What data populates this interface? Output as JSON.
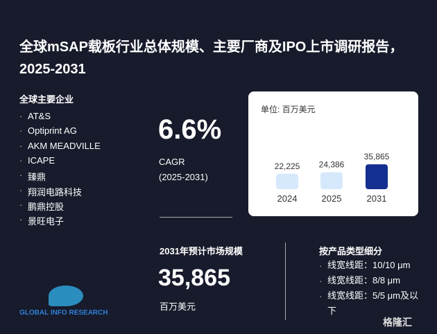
{
  "header": {
    "title": "全球mSAP载板行业总体规模、主要厂商及IPO上市调研报告，2025-2031"
  },
  "companies": {
    "heading": "全球主要企业",
    "items": [
      "AT&S",
      "Optiprint AG",
      "AKM MEADVILLE",
      "ICAPE",
      "臻鼎",
      "翔润电路科技",
      "鹏鼎控股",
      "景旺电子"
    ]
  },
  "cagr": {
    "value": "6.6%",
    "label": "CAGR",
    "period": "(2025-2031)"
  },
  "market": {
    "heading": "2031年预计市场规模",
    "value": "35,865",
    "unit": "百万美元"
  },
  "segments": {
    "heading": "按产品类型细分",
    "items": [
      "线宽线距：10/10 μm",
      "线宽线距：8/8 μm",
      "线宽线距：5/5 μm及以下"
    ]
  },
  "logo": {
    "text": "GLOBAL INFO RESEARCH"
  },
  "watermark": {
    "text": "格隆汇"
  },
  "chart_data": {
    "type": "bar",
    "subtitle": "单位: 百万美元",
    "categories": [
      "2024",
      "2025",
      "2031"
    ],
    "values": [
      22225,
      24386,
      35865
    ],
    "value_labels": [
      "22,225",
      "24,386",
      "35,865"
    ],
    "colors": [
      "#d6e8fb",
      "#d6e8fb",
      "#132f8f"
    ],
    "ylim": [
      0,
      40000
    ]
  }
}
